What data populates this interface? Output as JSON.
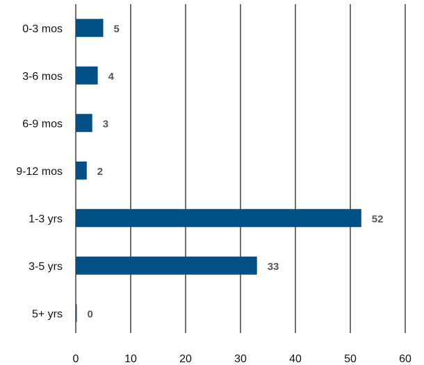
{
  "chart_data": {
    "type": "bar",
    "orientation": "horizontal",
    "title": "",
    "xlabel": "",
    "ylabel": "",
    "categories": [
      "0-3 mos",
      "3-6 mos",
      "6-9 mos",
      "9-12 mos",
      "1-3 yrs",
      "3-5 yrs",
      "5+ yrs"
    ],
    "values": [
      5,
      4,
      3,
      2,
      52,
      33,
      0
    ],
    "xlim": [
      0,
      60
    ],
    "xticks": [
      0,
      10,
      20,
      30,
      40,
      50,
      60
    ],
    "grid": "vertical",
    "legend": "none",
    "bar_color": "#004f86",
    "value_label_color": "#555555"
  }
}
